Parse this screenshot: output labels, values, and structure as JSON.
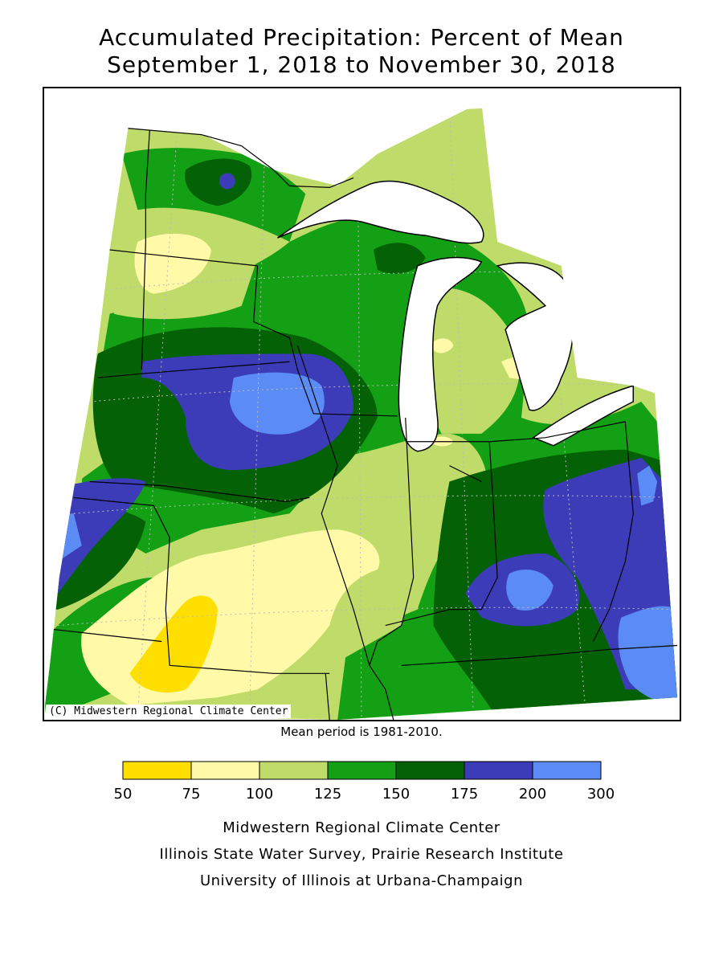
{
  "title": {
    "line1": "Accumulated Precipitation: Percent of Mean",
    "line2": "September 1, 2018 to November 30, 2018"
  },
  "map": {
    "copyright": "(C) Midwestern Regional Climate Center",
    "mean_period": "Mean period is 1981-2010."
  },
  "legend": {
    "bins": [
      {
        "from": 50,
        "to": 75,
        "color": "#ffdf00"
      },
      {
        "from": 75,
        "to": 100,
        "color": "#fff9a8"
      },
      {
        "from": 100,
        "to": 125,
        "color": "#bfdc6a"
      },
      {
        "from": 125,
        "to": 150,
        "color": "#14a015"
      },
      {
        "from": 150,
        "to": 175,
        "color": "#056105"
      },
      {
        "from": 175,
        "to": 200,
        "color": "#3c3cb8"
      },
      {
        "from": 200,
        "to": 300,
        "color": "#5b8cf5"
      }
    ],
    "tick_labels": [
      "50",
      "75",
      "100",
      "125",
      "150",
      "175",
      "200",
      "300"
    ]
  },
  "credits": {
    "line1": "Midwestern Regional Climate Center",
    "line2": "Illinois State Water Survey, Prairie Research Institute",
    "line3": "University of Illinois at Urbana-Champaign"
  }
}
